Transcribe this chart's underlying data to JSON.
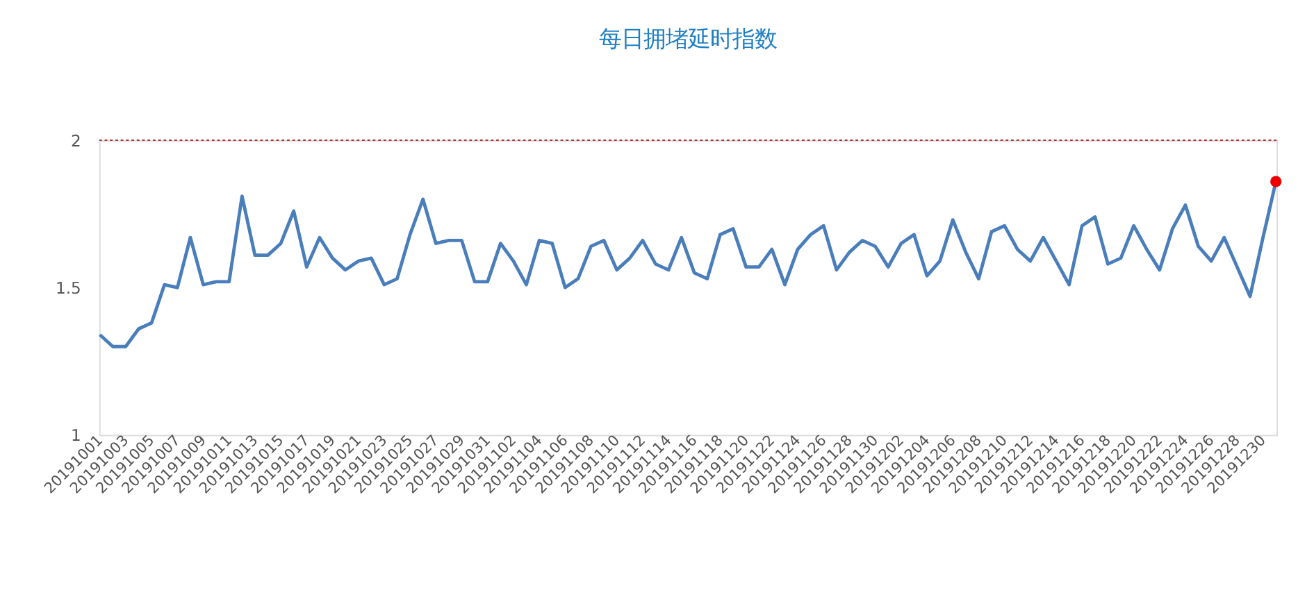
{
  "chart_data": {
    "type": "line",
    "title": "每日拥堵延时指数",
    "categories": [
      "20191001",
      null,
      "20191003",
      null,
      "20191005",
      null,
      "20191007",
      null,
      "20191009",
      null,
      "20191011",
      null,
      "20191013",
      null,
      "20191015",
      null,
      "20191017",
      null,
      "20191019",
      null,
      "20191021",
      null,
      "20191023",
      null,
      "20191025",
      null,
      "20191027",
      null,
      "20191029",
      null,
      "20191031",
      null,
      "20191102",
      null,
      "20191104",
      null,
      "20191106",
      null,
      "20191108",
      null,
      "20191110",
      null,
      "20191112",
      null,
      "20191114",
      null,
      "20191116",
      null,
      "20191118",
      null,
      "20191120",
      null,
      "20191122",
      null,
      "20191124",
      null,
      "20191126",
      null,
      "20191128",
      null,
      "20191130",
      null,
      "20191202",
      null,
      "20191204",
      null,
      "20191206",
      null,
      "20191208",
      null,
      "20191210",
      null,
      "20191212",
      null,
      "20191214",
      null,
      "20191216",
      null,
      "20191218",
      null,
      "20191220",
      null,
      "20191222",
      null,
      "20191224",
      null,
      "20191226",
      null,
      "20191228",
      null,
      "20191230",
      null
    ],
    "series": [
      {
        "color": "#4a7ebb",
        "values": [
          1.34,
          1.3,
          1.3,
          1.36,
          1.38,
          1.51,
          1.5,
          1.67,
          1.51,
          1.52,
          1.52,
          1.81,
          1.61,
          1.61,
          1.65,
          1.76,
          1.57,
          1.67,
          1.6,
          1.56,
          1.59,
          1.6,
          1.51,
          1.53,
          1.68,
          1.8,
          1.65,
          1.66,
          1.66,
          1.52,
          1.52,
          1.65,
          1.59,
          1.51,
          1.66,
          1.65,
          1.5,
          1.53,
          1.64,
          1.66,
          1.56,
          1.6,
          1.66,
          1.58,
          1.56,
          1.67,
          1.55,
          1.53,
          1.68,
          1.7,
          1.57,
          1.57,
          1.63,
          1.51,
          1.63,
          1.68,
          1.71,
          1.56,
          1.62,
          1.66,
          1.64,
          1.57,
          1.65,
          1.68,
          1.54,
          1.59,
          1.73,
          1.62,
          1.53,
          1.69,
          1.71,
          1.63,
          1.59,
          1.67,
          1.59,
          1.51,
          1.71,
          1.74,
          1.58,
          1.6,
          1.71,
          1.63,
          1.56,
          1.7,
          1.78,
          1.64,
          1.59,
          1.67,
          1.57,
          1.47,
          1.67,
          1.86
        ]
      },
      {
        "type": "scatter",
        "marker": "circle",
        "color": "#ee0000",
        "values": [
          null,
          null,
          null,
          null,
          null,
          null,
          null,
          null,
          null,
          null,
          null,
          null,
          null,
          null,
          null,
          null,
          null,
          null,
          null,
          null,
          null,
          null,
          null,
          null,
          null,
          null,
          null,
          null,
          null,
          null,
          null,
          null,
          null,
          null,
          null,
          null,
          null,
          null,
          null,
          null,
          null,
          null,
          null,
          null,
          null,
          null,
          null,
          null,
          null,
          null,
          null,
          null,
          null,
          null,
          null,
          null,
          null,
          null,
          null,
          null,
          null,
          null,
          null,
          null,
          null,
          null,
          null,
          null,
          null,
          null,
          null,
          null,
          null,
          null,
          null,
          null,
          null,
          null,
          null,
          null,
          null,
          null,
          null,
          null,
          null,
          null,
          null,
          null,
          null,
          null,
          null,
          1.86
        ]
      }
    ],
    "ylim": [
      1,
      2
    ],
    "yticks": [
      1,
      1.5,
      2
    ],
    "ref_lines": [
      {
        "axis": "y",
        "value": 2,
        "color": "#b03030",
        "line_style": "dotted"
      }
    ],
    "grid": false,
    "legend": false,
    "line_style": "solid"
  }
}
